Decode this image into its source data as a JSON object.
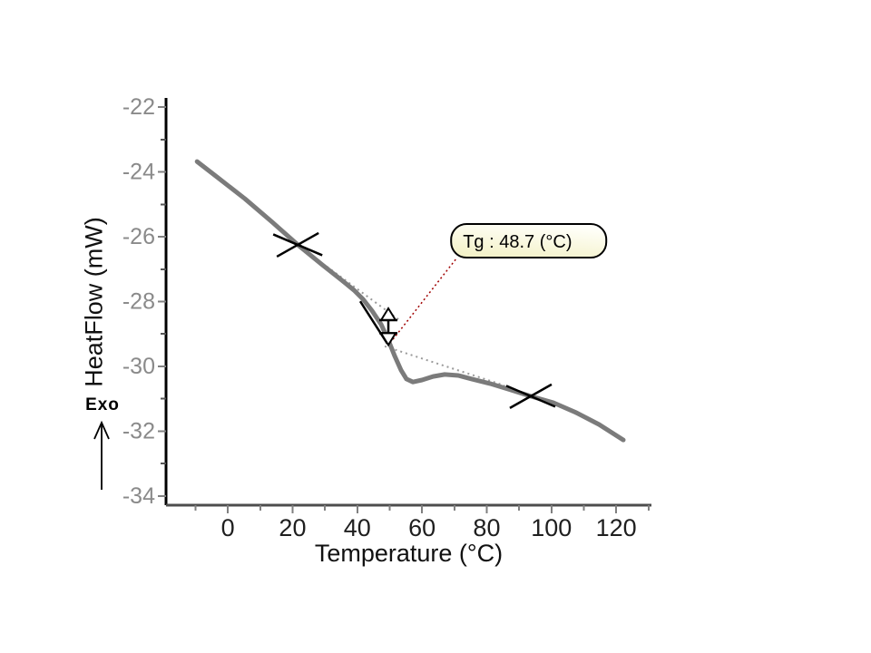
{
  "figure": {
    "background": "#ffffff",
    "description_label": "DSC thermogram with glass transition analysis"
  },
  "chart_data": {
    "type": "line",
    "title": "",
    "xlabel": "Temperature (°C)",
    "ylabel": "HeatFlow (mW)",
    "xlim": [
      -19.1,
      130.9
    ],
    "ylim": [
      -34.28,
      -21.72
    ],
    "x_major_ticks": [
      0,
      20,
      40,
      60,
      80,
      100,
      120
    ],
    "x_minor_ticks": [
      -10,
      10,
      30,
      50,
      70,
      90,
      110,
      130
    ],
    "y_major_ticks": [
      -22,
      -24,
      -26,
      -28,
      -30,
      -32,
      -34
    ],
    "y_minor_ticks": [
      -23,
      -25,
      -27,
      -29,
      -31,
      -33
    ],
    "grid": false,
    "legend_position": "none",
    "axis_colors": {
      "y_axis": "#000000",
      "x_axis": "#4d4d4d",
      "tick": "#808080",
      "x_tick_label": "#1f1f1f",
      "y_tick_label": "#8a8a8a"
    },
    "series": [
      {
        "name": "heat-flow-curve",
        "color": "#7b7b7b",
        "stroke_width": 5,
        "points": [
          [
            -9.5,
            -23.68
          ],
          [
            -3.1,
            -24.18
          ],
          [
            5.3,
            -24.83
          ],
          [
            13.7,
            -25.55
          ],
          [
            21.6,
            -26.25
          ],
          [
            29.2,
            -26.87
          ],
          [
            34.8,
            -27.31
          ],
          [
            39.0,
            -27.65
          ],
          [
            41.8,
            -27.93
          ],
          [
            44.6,
            -28.29
          ],
          [
            47.4,
            -28.71
          ],
          [
            49.6,
            -29.19
          ],
          [
            51.6,
            -29.69
          ],
          [
            53.5,
            -30.11
          ],
          [
            55.2,
            -30.39
          ],
          [
            57.2,
            -30.48
          ],
          [
            60.0,
            -30.42
          ],
          [
            63.4,
            -30.31
          ],
          [
            67.0,
            -30.25
          ],
          [
            71.2,
            -30.28
          ],
          [
            75.4,
            -30.39
          ],
          [
            81.0,
            -30.53
          ],
          [
            86.6,
            -30.7
          ],
          [
            93.6,
            -30.92
          ],
          [
            100.6,
            -31.12
          ],
          [
            107.7,
            -31.43
          ],
          [
            114.7,
            -31.79
          ],
          [
            122.2,
            -32.27
          ]
        ]
      }
    ],
    "annotations": {
      "tg_label": {
        "text": "Tg :  48.7 (°C)",
        "value_c": 48.7,
        "box_anchor": [
          69.0,
          -25.61
        ],
        "box_fill_top": "#fffffa",
        "box_fill_bottom": "#f3f1c6",
        "border_color": "#000000",
        "text_color": "#000000",
        "leader_from": [
          70.4,
          -26.7
        ],
        "leader_to": [
          50.2,
          -29.27
        ],
        "leader_color": "#a00000"
      },
      "exo_label": "Exo",
      "cursor_x_marks": [
        [
          21.6,
          -26.25
        ],
        [
          93.6,
          -30.92
        ]
      ],
      "inflection_tangent": {
        "from": [
          40.9,
          -27.99
        ],
        "to": [
          49.3,
          -29.3
        ],
        "color": "#000000"
      },
      "baseline_upper": {
        "from": [
          30.6,
          -26.92
        ],
        "to": [
          53.0,
          -28.57
        ],
        "color": "#9a9a9a"
      },
      "baseline_lower": {
        "from": [
          48.5,
          -29.38
        ],
        "to": [
          85.5,
          -30.59
        ],
        "color": "#9a9a9a"
      },
      "step_height_marker": {
        "t": 49.6,
        "hf_top": -28.21,
        "hf_bottom": -29.34,
        "color": "#000000"
      }
    }
  }
}
